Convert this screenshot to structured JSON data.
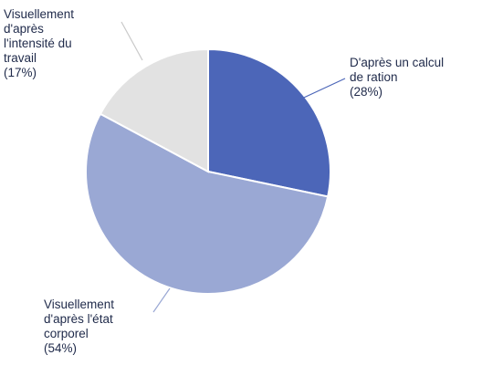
{
  "chart_data": {
    "type": "pie",
    "title": "",
    "start_angle_deg": 0,
    "direction": "clockwise",
    "slices": [
      {
        "label_lines": [
          "D'après un calcul",
          "de ration",
          "(28%)"
        ],
        "value": 28,
        "color": "#4c66b8"
      },
      {
        "label_lines": [
          "Visuellement",
          "d'après l'état",
          "corporel",
          "(54%)"
        ],
        "value": 54,
        "color": "#9aa8d4"
      },
      {
        "label_lines": [
          "Visuellement",
          "d'après",
          "l'intensité du",
          "travail",
          "(17%)"
        ],
        "value": 17,
        "color": "#e2e2e2"
      }
    ]
  }
}
